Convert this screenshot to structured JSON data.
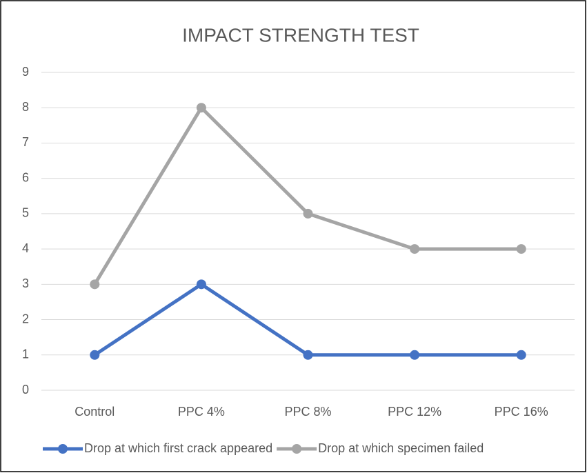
{
  "chart_data": {
    "type": "line",
    "title": "IMPACT STRENGTH TEST",
    "categories": [
      "Control",
      "PPC 4%",
      "PPC 8%",
      "PPC 12%",
      "PPC 16%"
    ],
    "series": [
      {
        "name": "Drop at which first crack appeared",
        "color": "#4472c4",
        "values": [
          1,
          3,
          1,
          1,
          1
        ]
      },
      {
        "name": "Drop at which specimen failed",
        "color": "#a5a5a5",
        "values": [
          3,
          8,
          5,
          4,
          4
        ]
      }
    ],
    "ylim": [
      0,
      9
    ],
    "yticks": [
      0,
      1,
      2,
      3,
      4,
      5,
      6,
      7,
      8,
      9
    ],
    "grid": true,
    "legend": "bottom"
  }
}
